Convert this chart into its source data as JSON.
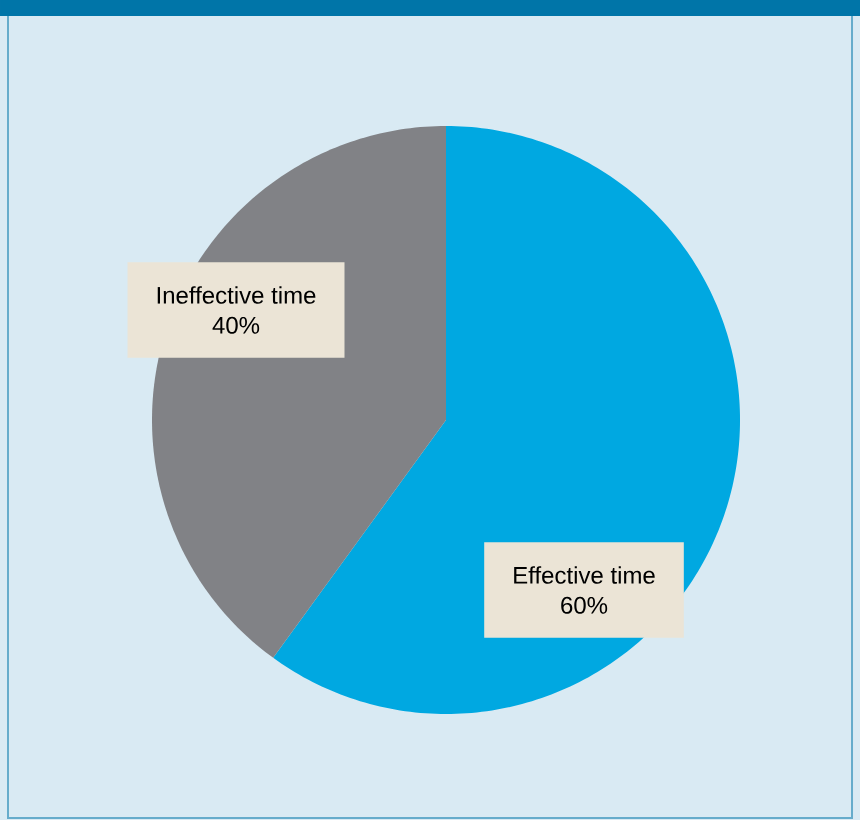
{
  "chart_data": {
    "type": "pie",
    "categories": [
      "Effective time",
      "Ineffective time"
    ],
    "values": [
      60,
      40
    ],
    "colors": [
      "#00a8e1",
      "#818286"
    ],
    "value_labels": [
      "60%",
      "40%"
    ]
  }
}
